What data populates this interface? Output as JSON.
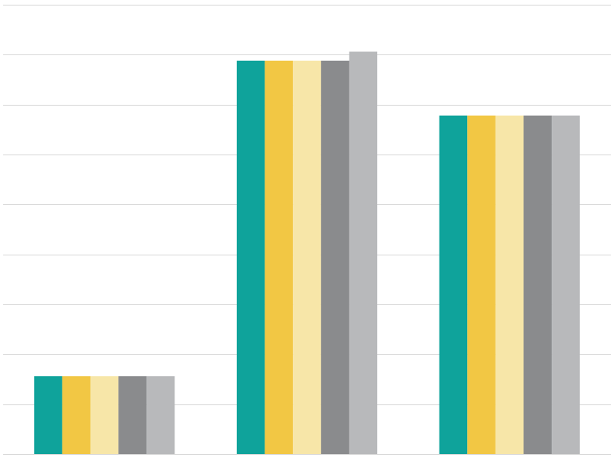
{
  "chart_data": {
    "type": "bar",
    "categories": [
      null,
      null,
      null
    ],
    "series": [
      {
        "color": "#0fa39b",
        "values": [
          1.56,
          7.88,
          6.78
        ]
      },
      {
        "color": "#f2c744",
        "values": [
          1.56,
          7.88,
          6.78
        ]
      },
      {
        "color": "#f7e6a8",
        "values": [
          1.56,
          7.88,
          6.78
        ]
      },
      {
        "color": "#8a8b8d",
        "values": [
          1.56,
          7.88,
          6.78
        ]
      },
      {
        "color": "#b8b9bb",
        "values": [
          1.56,
          8.06,
          6.78
        ]
      }
    ],
    "ylim": [
      0,
      9
    ],
    "yticks": [
      0,
      1,
      2,
      3,
      4,
      5,
      6,
      7,
      8,
      9
    ],
    "grid": true
  }
}
